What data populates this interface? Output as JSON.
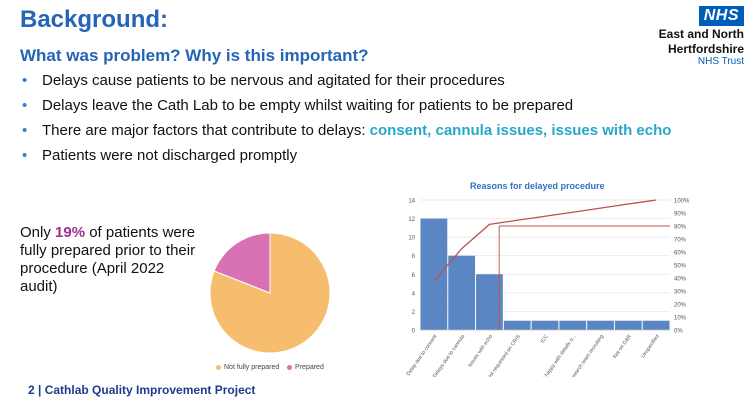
{
  "slide": {
    "title": "Background:",
    "subtitle": "What was problem? Why is this important?",
    "bullets": [
      {
        "text": "Delays cause patients to be nervous and agitated for their procedures"
      },
      {
        "text": "Delays leave the Cath Lab to be empty whilst waiting for patients to be prepared"
      },
      {
        "text": "There are major factors that contribute to delays: ",
        "highlight": "consent, cannula issues, issues with echo"
      },
      {
        "text": "Patients were not discharged promptly"
      }
    ],
    "statement": {
      "prefix": "Only ",
      "percent": "19%",
      "suffix": " of patients were fully prepared prior to their procedure (April 2022 audit)"
    },
    "footer": "2  |  Cathlab Quality Improvement Project"
  },
  "logo": {
    "badge": "NHS",
    "org_line1": "East and North",
    "org_line2": "Hertfordshire",
    "org_line3": "NHS Trust",
    "badge_color": "#005eb8"
  },
  "chart_data": [
    {
      "type": "pie",
      "categories": [
        "Not fully prepared",
        "Prepared"
      ],
      "values": [
        81,
        19
      ],
      "colors": [
        "#f7bd6e",
        "#d872b4"
      ],
      "legend_position": "bottom"
    },
    {
      "type": "bar",
      "title": "Reasons for delayed procedure",
      "categories": [
        "Delay due to consent",
        "Delays due to cannula",
        "Issues with echo",
        "Not requested on CRIS",
        "ICC",
        "Not happy with details o...",
        "Research team recruiting",
        "Not on D&R",
        "Unspecified"
      ],
      "values": [
        12,
        8,
        6,
        1,
        1,
        1,
        1,
        1,
        1
      ],
      "ylim": [
        0,
        14
      ],
      "yticks": [
        "0",
        "2",
        "4",
        "6",
        "8",
        "10",
        "12",
        "14"
      ],
      "y2lim": [
        0,
        100
      ],
      "y2ticks": [
        "0%",
        "10%",
        "20%",
        "30%",
        "40%",
        "50%",
        "60%",
        "70%",
        "80%",
        "90%",
        "100%"
      ],
      "cumulative_percent": [
        37.5,
        62.5,
        81.25,
        84.4,
        87.5,
        90.6,
        93.75,
        96.9,
        100
      ],
      "reference_percent": 80,
      "bar_color": "#5b86c4",
      "line_color": "#c0504d",
      "grid": true
    }
  ]
}
